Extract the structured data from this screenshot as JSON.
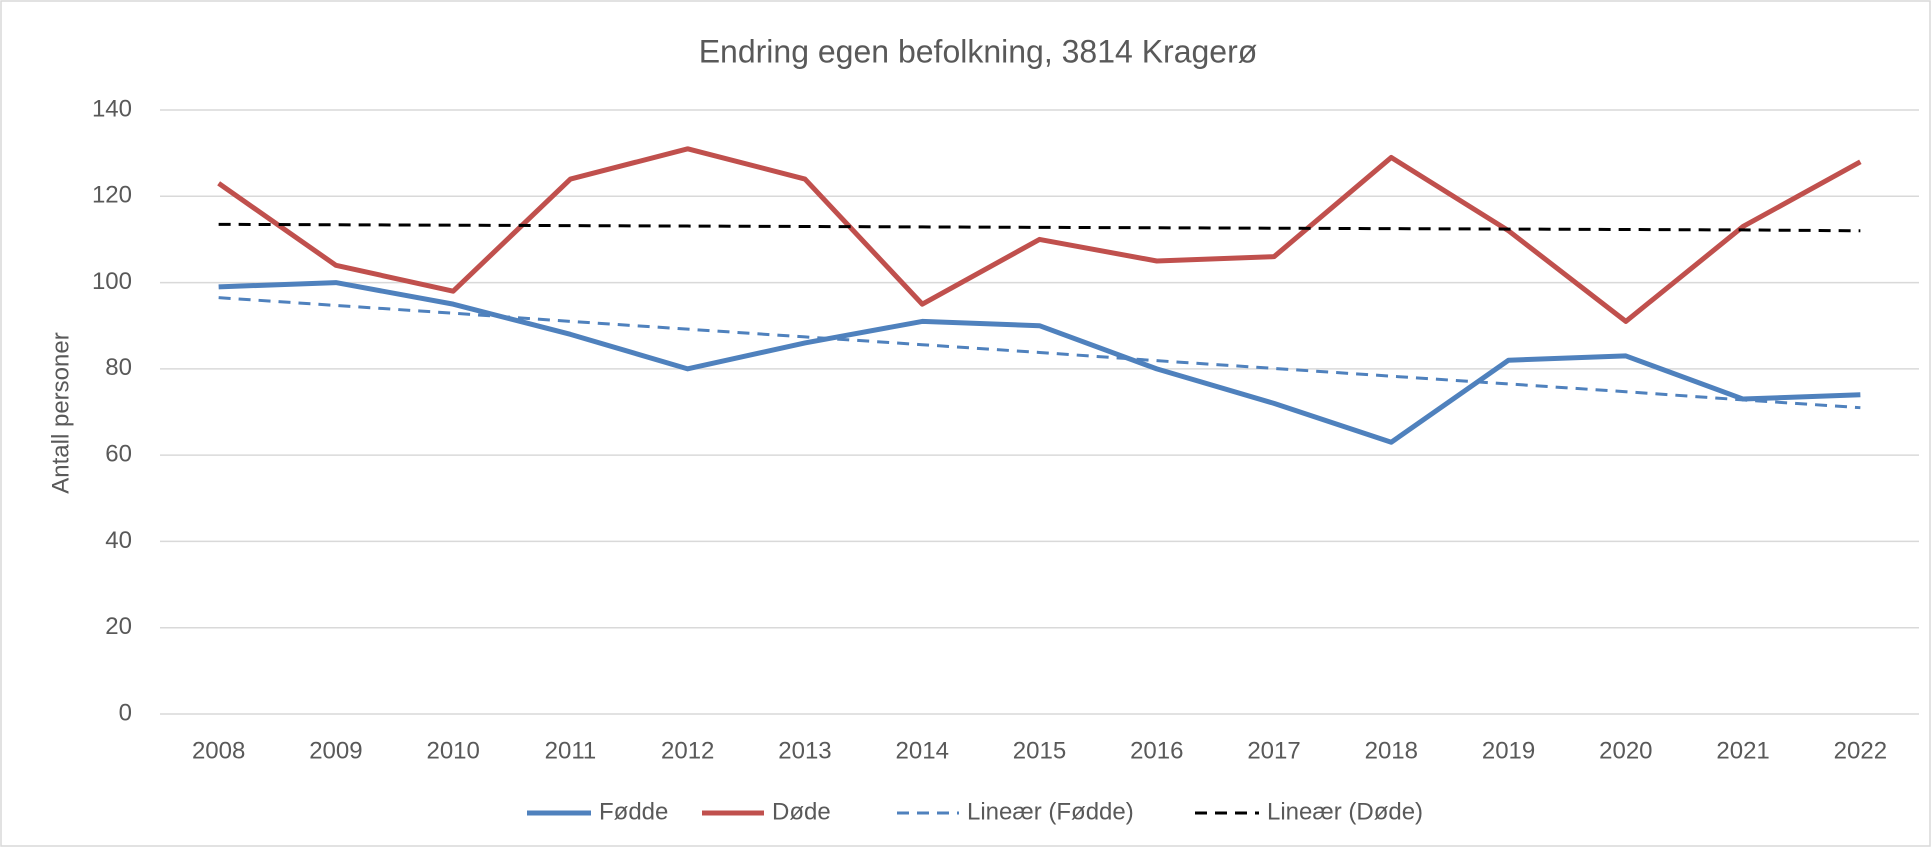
{
  "chart_data": {
    "type": "line",
    "title": "Endring egen befolkning, 3814 Kragerø",
    "y_label": "Antall personer",
    "categories": [
      "2008",
      "2009",
      "2010",
      "2011",
      "2012",
      "2013",
      "2014",
      "2015",
      "2016",
      "2017",
      "2018",
      "2019",
      "2020",
      "2021",
      "2022"
    ],
    "series": [
      {
        "name": "Fødde",
        "color": "#4f81bd",
        "dashed": false,
        "values": [
          99,
          100,
          95,
          88,
          80,
          86,
          91,
          90,
          80,
          72,
          63,
          82,
          83,
          73,
          74
        ]
      },
      {
        "name": "Døde",
        "color": "#c0504d",
        "dashed": false,
        "values": [
          123,
          104,
          98,
          124,
          131,
          124,
          95,
          110,
          105,
          106,
          129,
          112,
          91,
          113,
          128
        ]
      },
      {
        "name": "Lineær (Fødde)",
        "color": "#4f81bd",
        "dashed": true,
        "values": [
          96.5,
          94.7,
          92.9,
          91.0,
          89.2,
          87.4,
          85.6,
          83.8,
          81.9,
          80.1,
          78.3,
          76.5,
          74.7,
          72.8,
          71.0
        ]
      },
      {
        "name": "Lineær (Døde)",
        "color": "#000000",
        "dashed": true,
        "values": [
          113.5,
          113.4,
          113.3,
          113.2,
          113.1,
          113.0,
          112.9,
          112.8,
          112.7,
          112.6,
          112.5,
          112.4,
          112.3,
          112.2,
          112.0
        ]
      }
    ],
    "ylim": [
      0,
      140
    ],
    "yticks": [
      0,
      20,
      40,
      60,
      80,
      100,
      120,
      140
    ],
    "grid": true,
    "legend": "bottom"
  }
}
